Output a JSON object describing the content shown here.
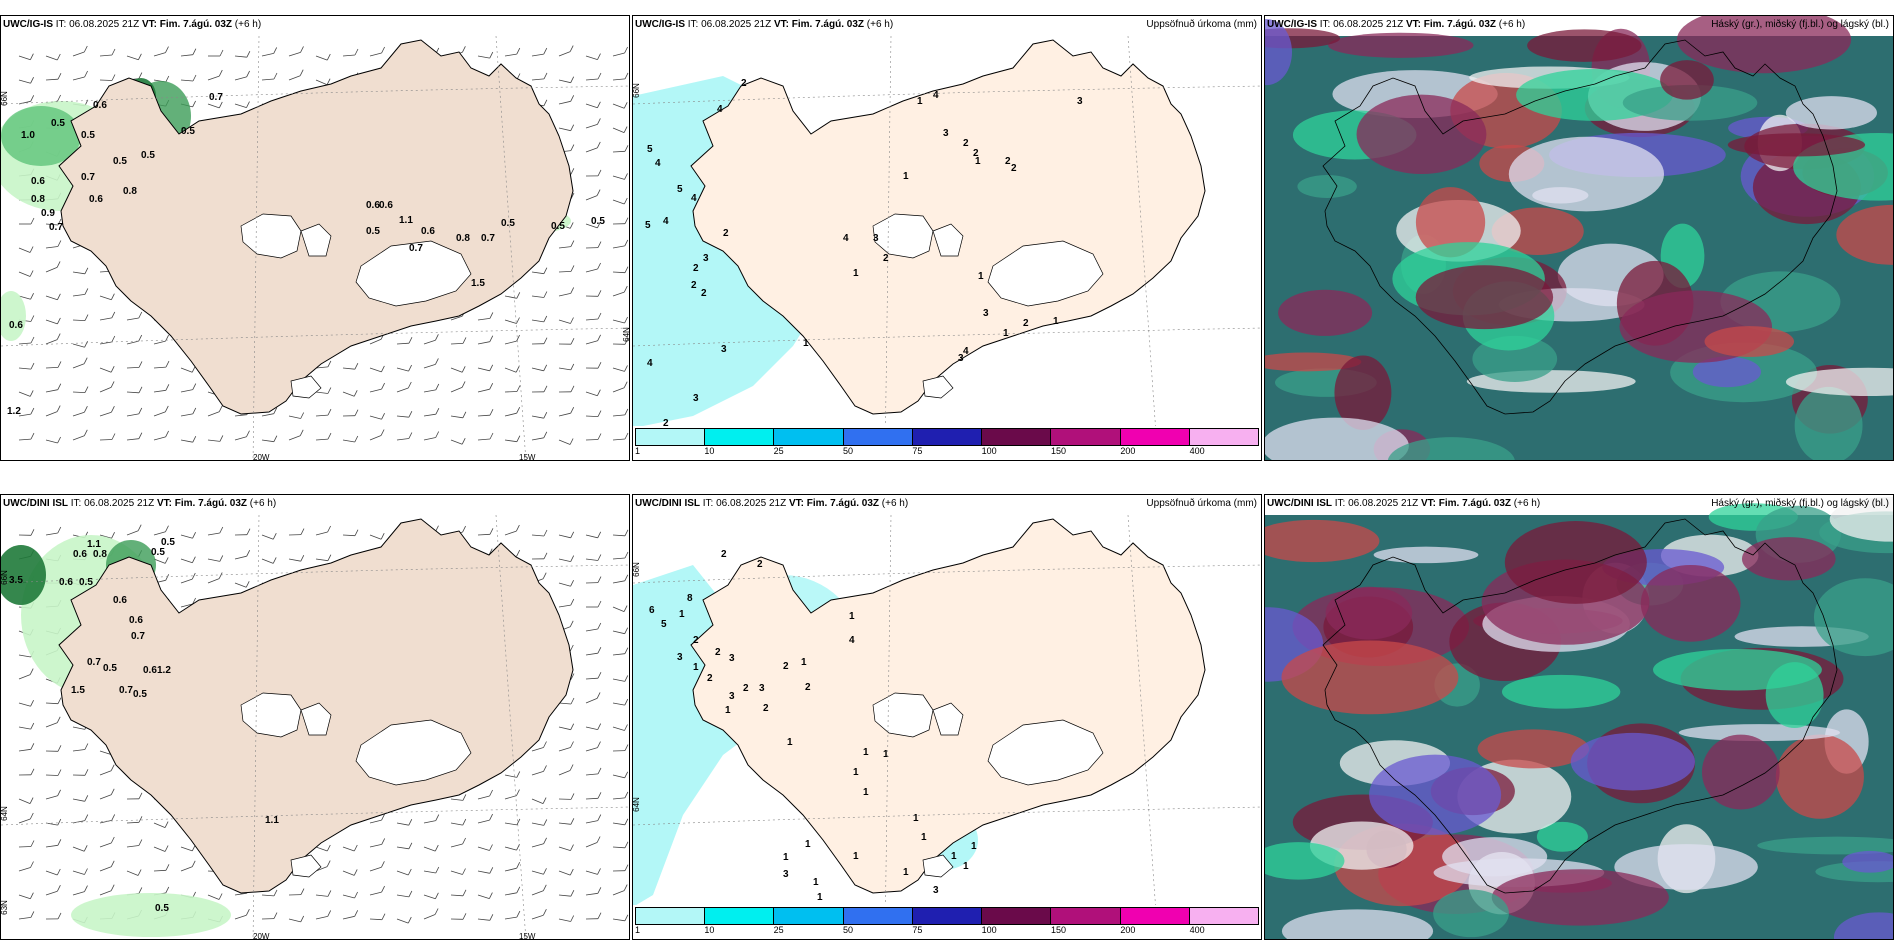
{
  "panels": [
    {
      "id": "ig-wind",
      "model": "UWC/IG-IS",
      "it_prefix": "IT:",
      "it_value": "06.08.2025 21Z",
      "vt_prefix": "VT:",
      "vt_value": "Fim. 7.ágú. 03Z",
      "lead": "(+6 h)",
      "right_title": "",
      "lon_labels": [
        "20W",
        "15W"
      ],
      "lat_labels": [
        "66N",
        "64N"
      ],
      "values": [
        "0.7",
        "0.6",
        "0.5",
        "1.0",
        "0.5",
        "0.5",
        "0.6",
        "0.7",
        "0.8",
        "0.9",
        "0.7",
        "0.6",
        "0.5",
        "0.5",
        "0.8",
        "0.6",
        "0.6",
        "0.5",
        "1.1",
        "0.6",
        "0.7",
        "0.8",
        "0.7",
        "0.5",
        "0.5",
        "0.5",
        "1.5",
        "0.6",
        "1.2"
      ]
    },
    {
      "id": "ig-precip",
      "model": "UWC/IG-IS",
      "it_prefix": "IT:",
      "it_value": "06.08.2025 21Z",
      "vt_prefix": "VT:",
      "vt_value": "Fim. 7.ágú. 03Z",
      "lead": "(+6 h)",
      "right_title": "Uppsöfnuð úrkoma (mm)",
      "lat_labels": [
        "66N"
      ],
      "values": [
        "2",
        "4",
        "5",
        "4",
        "5",
        "5",
        "4",
        "4",
        "2",
        "3",
        "2",
        "2",
        "2",
        "4",
        "3",
        "3",
        "2",
        "4",
        "1",
        "1",
        "3",
        "2",
        "1",
        "1",
        "4",
        "3",
        "2",
        "1",
        "2",
        "2",
        "2",
        "1",
        "3",
        "3",
        "4",
        "1",
        "2",
        "1",
        "3"
      ]
    },
    {
      "id": "ig-cloud",
      "model": "UWC/IG-IS",
      "it_prefix": "IT:",
      "it_value": "06.08.2025 21Z",
      "vt_prefix": "VT:",
      "vt_value": "Fim. 7.ágú. 03Z",
      "lead": "(+6 h)",
      "right_title": "Háský (gr.), miðský (fj.bl.) og lágský (bl.)"
    },
    {
      "id": "dini-wind",
      "model": "UWC/DINI ISL",
      "it_prefix": "IT:",
      "it_value": "06.08.2025 21Z",
      "vt_prefix": "VT:",
      "vt_value": "Fim. 7.ágú. 03Z",
      "lead": "(+6 h)",
      "right_title": "",
      "lon_labels": [
        "20W",
        "15W"
      ],
      "lat_labels": [
        "66N",
        "64N",
        "63N"
      ],
      "values": [
        "1.1",
        "0.5",
        "0.6",
        "0.8",
        "0.5",
        "3.5",
        "0.6",
        "0.5",
        "0.6",
        "0.6",
        "0.7",
        "0.7",
        "0.5",
        "0.6",
        "1.2",
        "1.5",
        "0.7",
        "0.5",
        "1.1",
        "0.5"
      ]
    },
    {
      "id": "dini-precip",
      "model": "UWC/DINI ISL",
      "it_prefix": "IT:",
      "it_value": "06.08.2025 21Z",
      "vt_prefix": "VT:",
      "vt_value": "Fim. 7.ágú. 03Z",
      "lead": "(+6 h)",
      "right_title": "Uppsöfnuð úrkoma (mm)",
      "lat_labels": [
        "66N",
        "64N"
      ],
      "values": [
        "2",
        "2",
        "6",
        "5",
        "8",
        "1",
        "2",
        "3",
        "2",
        "3",
        "1",
        "2",
        "2",
        "3",
        "3",
        "1",
        "2",
        "2",
        "1",
        "2",
        "4",
        "1",
        "1",
        "1",
        "1",
        "1",
        "1",
        "1",
        "1",
        "1",
        "1",
        "1",
        "3",
        "1",
        "1",
        "1",
        "1",
        "3",
        "1",
        "1"
      ]
    },
    {
      "id": "dini-cloud",
      "model": "UWC/DINI ISL",
      "it_prefix": "IT:",
      "it_value": "06.08.2025 21Z",
      "vt_prefix": "VT:",
      "vt_value": "Fim. 7.ágú. 03Z",
      "lead": "(+6 h)",
      "right_title": "Háský (gr.), miðský (fj.bl.) og lágský (bl.)"
    }
  ],
  "colorbar": {
    "labels": [
      "1",
      "10",
      "25",
      "50",
      "75",
      "100",
      "150",
      "200",
      "400"
    ],
    "colors": [
      "#b3f7f7",
      "#00efef",
      "#00bff0",
      "#3070f0",
      "#1f1fb0",
      "#6a0a4a",
      "#b0107a",
      "#f000b0",
      "#f7b0f0"
    ]
  },
  "colors": {
    "land": "#f0ded0",
    "land_precip_panel": "#fff0e3",
    "sea_precip": "#b3f7f7",
    "precip_green_light": "#c8f5c8",
    "precip_green_dark": "#1f7a3a",
    "cloud_high": "#2d6e70",
    "cloud_mid": "#6a5ad0",
    "cloud_low": "#7a1a3a"
  }
}
